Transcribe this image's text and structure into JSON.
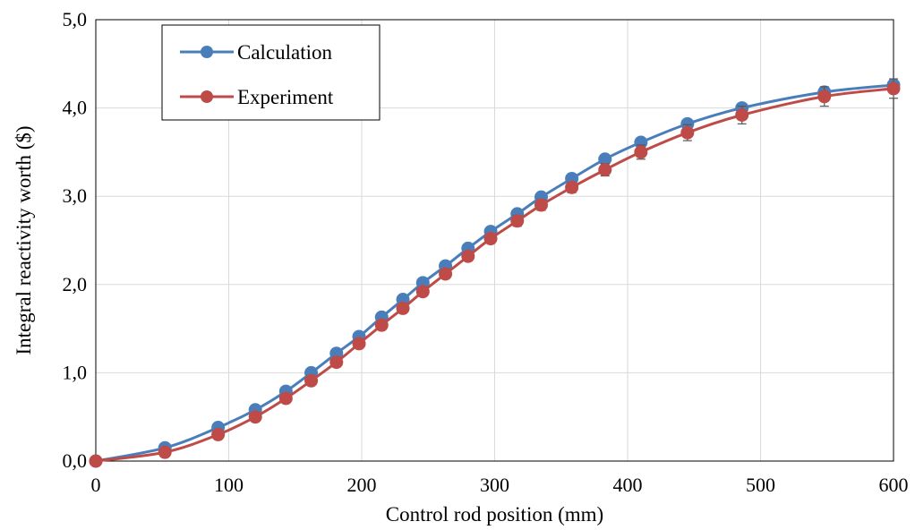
{
  "chart_data": {
    "type": "line",
    "title": "",
    "xlabel": "Control rod position (mm)",
    "ylabel": "Integral reactivity worth ($)",
    "xlim": [
      0,
      600
    ],
    "ylim": [
      0,
      5
    ],
    "xticks": [
      0,
      100,
      200,
      300,
      400,
      500,
      600
    ],
    "xtick_labels": [
      "0",
      "100",
      "200",
      "300",
      "400",
      "500",
      "600"
    ],
    "yticks": [
      0,
      1,
      2,
      3,
      4,
      5
    ],
    "ytick_labels": [
      "0,0",
      "1,0",
      "2,0",
      "3,0",
      "4,0",
      "5,0"
    ],
    "grid": true,
    "legend_position": "top-left",
    "series": [
      {
        "name": "Calculation",
        "color": "#4a7ebb",
        "marker": "circle",
        "x": [
          0,
          52,
          92,
          120,
          143,
          162,
          181,
          198,
          215,
          231,
          246,
          263,
          280,
          297,
          317,
          335,
          358,
          383,
          410,
          445,
          486,
          548,
          600
        ],
        "y": [
          0,
          0.15,
          0.38,
          0.58,
          0.79,
          1.0,
          1.22,
          1.41,
          1.63,
          1.83,
          2.02,
          2.21,
          2.41,
          2.6,
          2.8,
          2.99,
          3.2,
          3.42,
          3.61,
          3.82,
          4.0,
          4.18,
          4.26
        ]
      },
      {
        "name": "Experiment",
        "color": "#be4b48",
        "marker": "circle",
        "error_bars": true,
        "x": [
          0,
          52,
          92,
          120,
          143,
          162,
          181,
          198,
          215,
          231,
          246,
          263,
          280,
          297,
          317,
          335,
          358,
          383,
          410,
          445,
          486,
          548,
          600
        ],
        "y": [
          0,
          0.1,
          0.3,
          0.5,
          0.71,
          0.91,
          1.12,
          1.33,
          1.54,
          1.73,
          1.92,
          2.12,
          2.32,
          2.52,
          2.72,
          2.9,
          3.1,
          3.3,
          3.5,
          3.72,
          3.92,
          4.13,
          4.22
        ],
        "error": [
          0,
          0.02,
          0.02,
          0.03,
          0.03,
          0.03,
          0.04,
          0.04,
          0.04,
          0.05,
          0.05,
          0.05,
          0.05,
          0.05,
          0.06,
          0.06,
          0.06,
          0.07,
          0.08,
          0.09,
          0.1,
          0.11,
          0.11
        ]
      }
    ]
  }
}
